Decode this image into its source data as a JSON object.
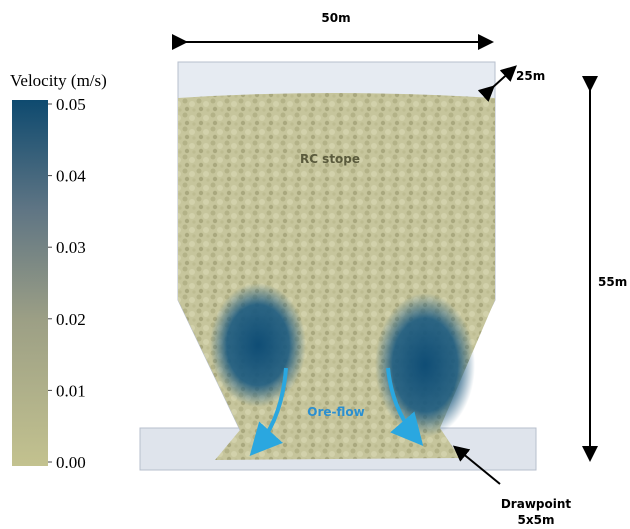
{
  "colorbar": {
    "title": "Velocity (m/s)",
    "min": 0,
    "max": 0.05,
    "ticks": [
      {
        "value": 0,
        "label": "0.00"
      },
      0.01,
      0.02,
      0.03,
      0.04,
      0.05
    ]
  },
  "annotations": {
    "width": "50m",
    "depth": "25m",
    "height": "55m",
    "stope": "RC stope",
    "flow": "Ore-flow",
    "drawpoint": "Drawpoint",
    "drawpoint_size": "5x5m"
  }
}
